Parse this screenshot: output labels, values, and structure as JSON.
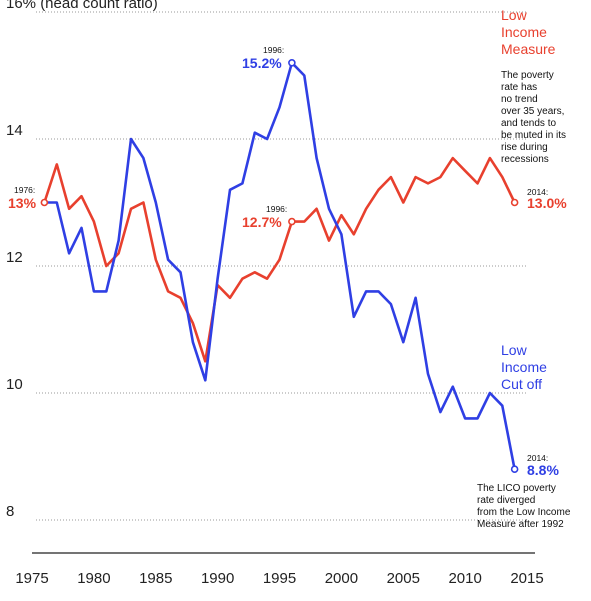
{
  "chart_data": {
    "type": "line",
    "title": "",
    "xlabel": "",
    "ylabel": "16% (head count ratio)",
    "xlim": [
      1975,
      2015
    ],
    "ylim": [
      8,
      16
    ],
    "x_ticks": [
      "1975",
      "1980",
      "1985",
      "1990",
      "1995",
      "2000",
      "2005",
      "2010",
      "2015"
    ],
    "y_ticks": [
      {
        "value": 16,
        "label": "16% (head count ratio)"
      },
      {
        "value": 14,
        "label": "14"
      },
      {
        "value": 12,
        "label": "12"
      },
      {
        "value": 10,
        "label": "10"
      },
      {
        "value": 8,
        "label": "8"
      }
    ],
    "grid": true,
    "colors": {
      "lim": "#e8402e",
      "lico": "#2f3fe4"
    },
    "x": [
      1976,
      1977,
      1978,
      1979,
      1980,
      1981,
      1982,
      1983,
      1984,
      1985,
      1986,
      1987,
      1988,
      1989,
      1990,
      1991,
      1992,
      1993,
      1994,
      1995,
      1996,
      1997,
      1998,
      1999,
      2000,
      2001,
      2002,
      2003,
      2004,
      2005,
      2006,
      2007,
      2008,
      2009,
      2010,
      2011,
      2012,
      2013,
      2014
    ],
    "series": [
      {
        "name": "Low Income Measure",
        "legend": [
          "Low",
          "Income",
          "Measure"
        ],
        "values": [
          13.0,
          13.6,
          12.9,
          13.1,
          12.7,
          12.0,
          12.2,
          12.9,
          13.0,
          12.1,
          11.6,
          11.5,
          11.1,
          10.5,
          11.7,
          11.5,
          11.8,
          11.9,
          11.8,
          12.1,
          12.7,
          12.7,
          12.9,
          12.4,
          12.8,
          12.5,
          12.9,
          13.2,
          13.4,
          13.0,
          13.4,
          13.3,
          13.4,
          13.7,
          13.5,
          13.3,
          13.7,
          13.4,
          13.0
        ]
      },
      {
        "name": "Low Income Cut off",
        "legend": [
          "Low",
          "Income",
          "Cut off"
        ],
        "values": [
          13.0,
          13.0,
          12.2,
          12.6,
          11.6,
          11.6,
          12.4,
          14.0,
          13.7,
          13.0,
          12.1,
          11.9,
          10.8,
          10.2,
          11.8,
          13.2,
          13.3,
          14.1,
          14.0,
          14.5,
          15.2,
          15.0,
          13.7,
          12.9,
          12.5,
          11.2,
          11.6,
          11.6,
          11.4,
          10.8,
          11.5,
          10.3,
          9.7,
          10.1,
          9.6,
          9.6,
          10.0,
          9.8,
          8.8
        ]
      }
    ],
    "annotations": {
      "lim_start": {
        "year": "1976:",
        "value": "13%"
      },
      "lim_1996": {
        "year": "1996:",
        "value": "12.7%"
      },
      "lim_2014": {
        "year": "2014:",
        "value": "13.0%"
      },
      "lico_1996": {
        "year": "1996:",
        "value": "15.2%"
      },
      "lico_2014": {
        "year": "2014:",
        "value": "8.8%"
      }
    },
    "notes": {
      "lim": [
        "The poverty",
        "rate has",
        "no trend",
        "over 35 years,",
        "and tends to",
        "be muted in its",
        "rise during",
        "recessions"
      ],
      "lico": [
        "The LICO poverty",
        "rate diverged",
        "from the Low Income",
        "Measure after 1992"
      ]
    }
  }
}
